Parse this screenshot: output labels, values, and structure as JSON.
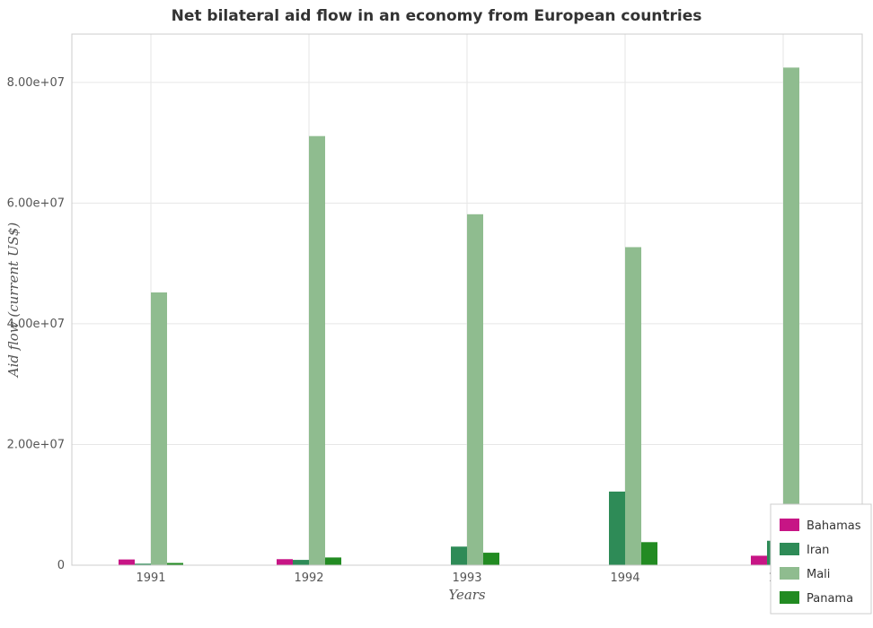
{
  "title": "Net bilateral aid flow in an economy from European countries",
  "chart_data": {
    "type": "bar",
    "title": "Net bilateral aid flow in an economy from European countries",
    "xlabel": "Years",
    "ylabel": "Aid flow (current US$)",
    "categories": [
      "1991",
      "1992",
      "1993",
      "1994",
      "1995"
    ],
    "ylim": [
      0,
      88000000
    ],
    "yticks": [
      0,
      20000000,
      40000000,
      60000000,
      80000000
    ],
    "ytick_labels": [
      "0",
      "2.00e+07",
      "4.00e+07",
      "6.00e+07",
      "8.00e+07"
    ],
    "grid": true,
    "legend_position": "bottom-right",
    "series": [
      {
        "name": "Bahamas",
        "color": "#c71585",
        "values": [
          950000,
          1000000,
          0,
          0,
          1570000
        ]
      },
      {
        "name": "Iran",
        "color": "#2e8b57",
        "values": [
          250000,
          880000,
          3080000,
          12200000,
          4050000
        ]
      },
      {
        "name": "Mali",
        "color": "#8fbc8f",
        "values": [
          45200000,
          71100000,
          58150000,
          52700000,
          82450000
        ]
      },
      {
        "name": "Panama",
        "color": "#228b22",
        "values": [
          370000,
          1280000,
          2070000,
          3820000,
          6750000
        ]
      }
    ]
  }
}
